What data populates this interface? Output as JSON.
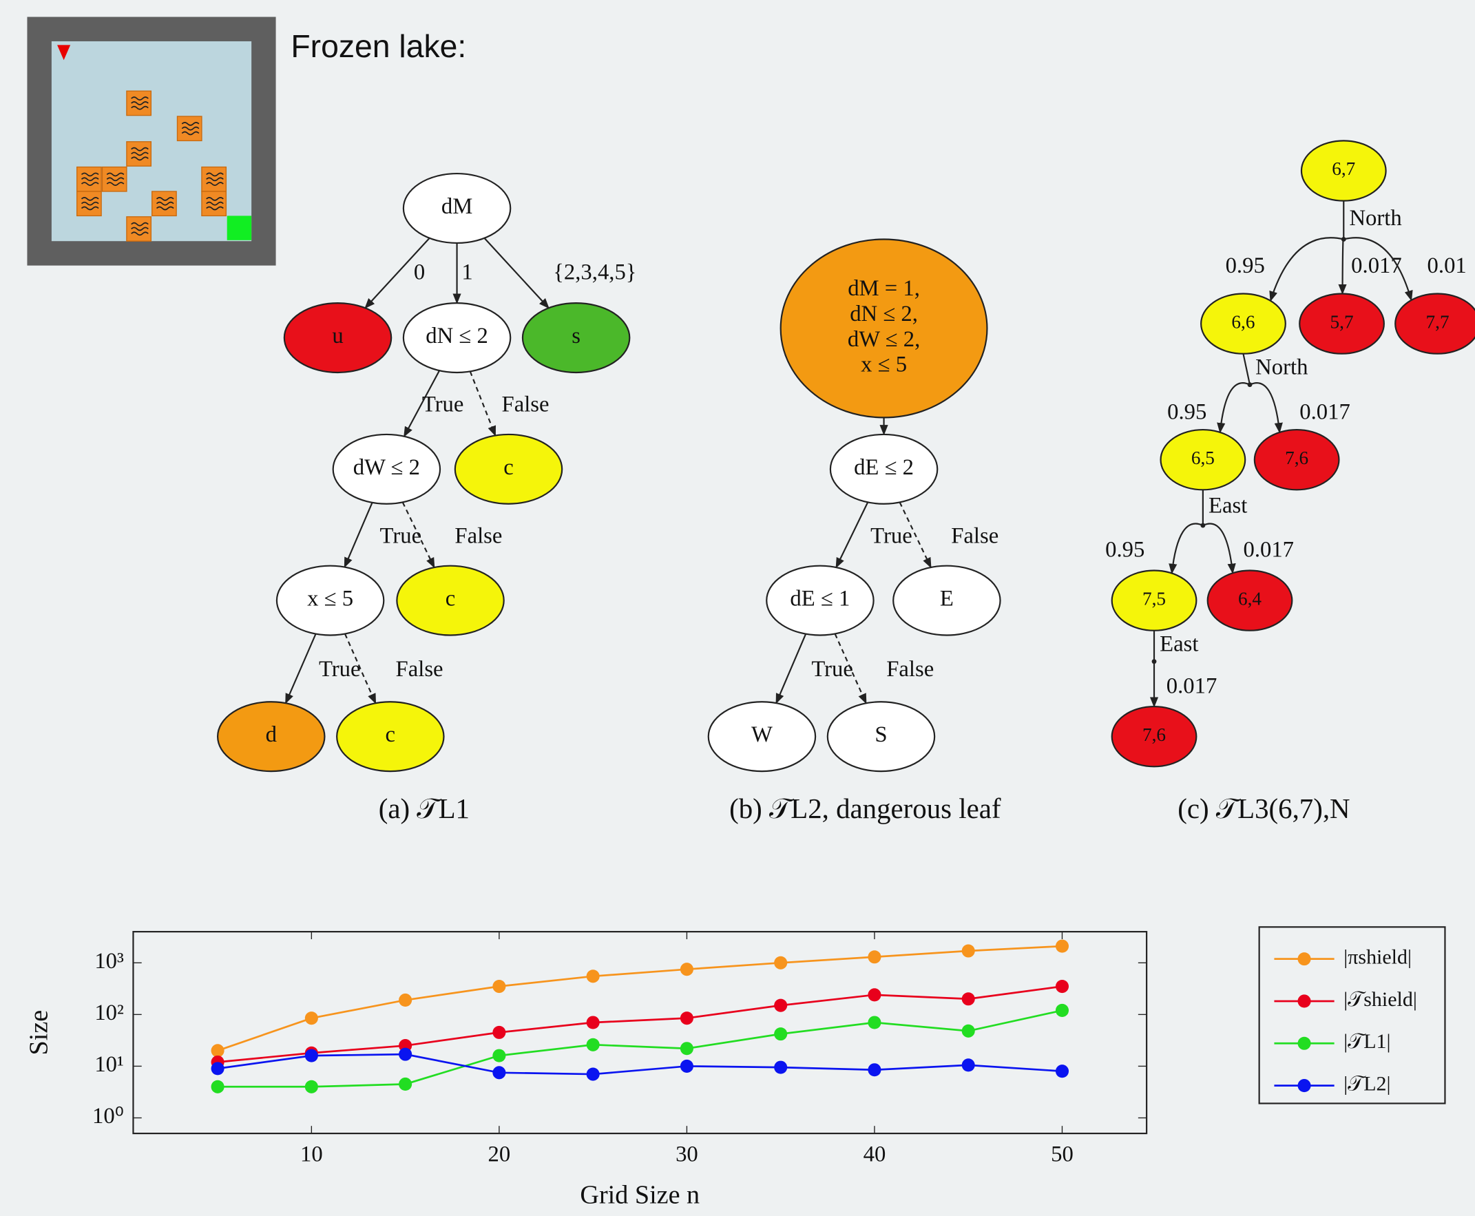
{
  "title": "Frozen lake:",
  "trees": [
    {
      "caption": "(a) 𝒯L1",
      "nodes": [
        {
          "label": [
            "dM"
          ],
          "color": "#ffffff"
        },
        {
          "label": [
            "u"
          ],
          "color": "#e8101a"
        },
        {
          "label": [
            "dN ≤ 2"
          ],
          "color": "#ffffff"
        },
        {
          "label": [
            "s"
          ],
          "color": "#4bb82a"
        },
        {
          "label": [
            "dW ≤ 2"
          ],
          "color": "#ffffff"
        },
        {
          "label": [
            "c"
          ],
          "color": "#f5f50a"
        },
        {
          "label": [
            "x ≤ 5"
          ],
          "color": "#ffffff"
        },
        {
          "label": [
            "c"
          ],
          "color": "#f5f50a"
        },
        {
          "label": [
            "d"
          ],
          "color": "#f39a12"
        },
        {
          "label": [
            "c"
          ],
          "color": "#f5f50a"
        }
      ],
      "edges": [
        {
          "from": 0,
          "to": 1,
          "label": "0"
        },
        {
          "from": 0,
          "to": 2,
          "label": "1"
        },
        {
          "from": 0,
          "to": 3,
          "label": "{2,3,4,5}"
        },
        {
          "from": 2,
          "to": 4,
          "label": "True"
        },
        {
          "from": 2,
          "to": 5,
          "label": "False",
          "style": "dashed"
        },
        {
          "from": 4,
          "to": 6,
          "label": "True"
        },
        {
          "from": 4,
          "to": 7,
          "label": "False",
          "style": "dashed"
        },
        {
          "from": 6,
          "to": 8,
          "label": "True"
        },
        {
          "from": 6,
          "to": 9,
          "label": "False",
          "style": "dashed"
        }
      ]
    },
    {
      "caption": "(b) 𝒯L2, dangerous leaf",
      "nodes": [
        {
          "label": [
            "dM = 1,",
            "dN ≤ 2,",
            "dW ≤ 2,",
            "x ≤ 5"
          ],
          "color": "#f39a12"
        },
        {
          "label": [
            "dE ≤ 2"
          ],
          "color": "#ffffff"
        },
        {
          "label": [
            "dE ≤ 1"
          ],
          "color": "#ffffff"
        },
        {
          "label": [
            "E"
          ],
          "color": "#ffffff"
        },
        {
          "label": [
            "W"
          ],
          "color": "#ffffff"
        },
        {
          "label": [
            "S"
          ],
          "color": "#ffffff"
        }
      ],
      "edges": [
        {
          "from": 0,
          "to": 1
        },
        {
          "from": 1,
          "to": 2,
          "label": "True"
        },
        {
          "from": 1,
          "to": 3,
          "label": "False",
          "style": "dashed"
        },
        {
          "from": 2,
          "to": 4,
          "label": "True"
        },
        {
          "from": 2,
          "to": 5,
          "label": "False",
          "style": "dashed"
        }
      ]
    },
    {
      "caption": "(c) 𝒯L3(6,7),N",
      "nodes": [
        {
          "label": [
            "6,7"
          ],
          "color": "#f5f50a"
        },
        {
          "label": [
            "6,6"
          ],
          "color": "#f5f50a"
        },
        {
          "label": [
            "5,7"
          ],
          "color": "#e8101a"
        },
        {
          "label": [
            "7,7"
          ],
          "color": "#e8101a"
        },
        {
          "label": [
            "6,5"
          ],
          "color": "#f5f50a"
        },
        {
          "label": [
            "7,6"
          ],
          "color": "#e8101a"
        },
        {
          "label": [
            "7,5"
          ],
          "color": "#f5f50a"
        },
        {
          "label": [
            "6,4"
          ],
          "color": "#e8101a"
        },
        {
          "label": [
            "7,6"
          ],
          "color": "#e8101a"
        }
      ],
      "steps": [
        {
          "from": 0,
          "action": "North",
          "to": [
            {
              "node": 1,
              "prob": 0.95
            },
            {
              "node": 2,
              "prob": 0.017
            },
            {
              "node": 3,
              "prob": 0.01
            }
          ]
        },
        {
          "from": 1,
          "action": "North",
          "to": [
            {
              "node": 4,
              "prob": 0.95
            },
            {
              "node": 5,
              "prob": 0.017
            }
          ]
        },
        {
          "from": 4,
          "action": "East",
          "to": [
            {
              "node": 6,
              "prob": 0.95
            },
            {
              "node": 7,
              "prob": 0.017
            }
          ]
        },
        {
          "from": 6,
          "action": "East",
          "to": [
            {
              "node": 8,
              "prob": 0.017
            }
          ]
        }
      ]
    }
  ],
  "chart_data": {
    "type": "line",
    "x_label": "Grid Size n",
    "y_label": "Size",
    "log_y": true,
    "x": [
      5,
      10,
      15,
      20,
      25,
      30,
      35,
      40,
      45,
      50
    ],
    "xlim": [
      0.5,
      54.5
    ],
    "xticks": [
      10,
      20,
      30,
      40,
      50
    ],
    "ylim": [
      0.5,
      4000
    ],
    "yticks": [
      {
        "value": 1,
        "label": "10⁰"
      },
      {
        "value": 10,
        "label": "10¹"
      },
      {
        "value": 100,
        "label": "10²"
      },
      {
        "value": 1000,
        "label": "10³"
      }
    ],
    "series": [
      {
        "name": "|πshield|",
        "color": "#f7941d",
        "values": [
          20,
          85,
          190,
          350,
          550,
          750,
          1000,
          1300,
          1700,
          2100
        ]
      },
      {
        "name": "|𝒯shield|",
        "color": "#e8001c",
        "values": [
          12,
          18,
          25,
          45,
          70,
          85,
          150,
          240,
          200,
          350
        ]
      },
      {
        "name": "|𝒯L1|",
        "color": "#22dd22",
        "values": [
          4,
          4,
          4.5,
          16,
          26,
          22,
          42,
          70,
          48,
          120
        ]
      },
      {
        "name": "|𝒯L2|",
        "color": "#0a14f0",
        "values": [
          9,
          16,
          17,
          7.5,
          7,
          10,
          9.5,
          8.5,
          10.5,
          8
        ]
      }
    ]
  }
}
